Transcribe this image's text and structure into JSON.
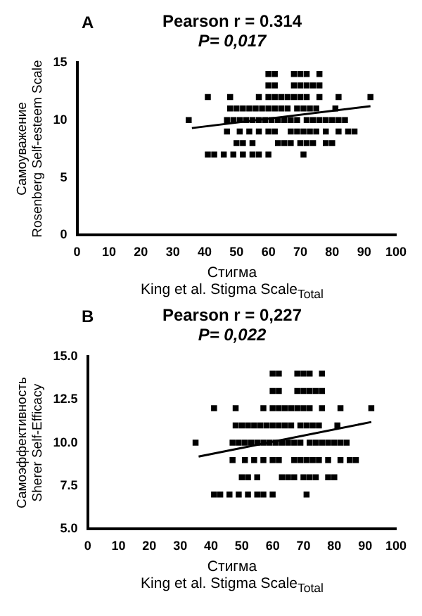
{
  "chart_data": [
    {
      "type": "scatter",
      "title": "Pearson r = 0.314",
      "subtitle": "P= 0,017",
      "annotations": [
        "A"
      ],
      "xlabel": "Стигма\nKing et al. Stigma Scale$_{Total}$",
      "ylabel": "Самоуважение\nRosenberg Self-esteem Scale",
      "xlim": [
        0,
        100
      ],
      "xticks": [
        0,
        10,
        20,
        30,
        40,
        50,
        60,
        70,
        80,
        90,
        100
      ],
      "ylim": [
        0,
        15
      ],
      "yticks": [
        0,
        5,
        10,
        15
      ],
      "grid": false,
      "legend": false,
      "series": [
        {
          "marker": "square",
          "color": "#000000",
          "x": [
            60,
            62,
            68,
            70,
            72,
            76,
            60,
            62,
            68,
            70,
            72,
            74,
            76,
            41,
            48,
            57,
            60,
            62,
            64,
            66,
            68,
            70,
            72,
            76,
            82,
            92,
            48,
            50,
            52,
            54,
            56,
            58,
            60,
            62,
            64,
            66,
            69,
            71,
            73,
            75,
            81,
            35,
            47,
            49,
            51,
            53,
            55,
            57,
            59,
            61,
            63,
            65,
            67,
            69,
            72,
            74,
            76,
            78,
            80,
            82,
            84,
            47,
            51,
            54,
            57,
            60,
            62,
            67,
            69,
            71,
            73,
            75,
            78,
            82,
            85,
            87,
            50,
            52,
            55,
            63,
            65,
            67,
            70,
            72,
            74,
            78,
            80,
            41,
            43,
            46,
            49,
            52,
            55,
            57,
            60,
            71
          ],
          "values": [
            14,
            14,
            14,
            14,
            14,
            14,
            13,
            13,
            13,
            13,
            13,
            13,
            13,
            12,
            12,
            12,
            12,
            12,
            12,
            12,
            12,
            12,
            12,
            12,
            12,
            12,
            11,
            11,
            11,
            11,
            11,
            11,
            11,
            11,
            11,
            11,
            11,
            11,
            11,
            11,
            11,
            10,
            10,
            10,
            10,
            10,
            10,
            10,
            10,
            10,
            10,
            10,
            10,
            10,
            10,
            10,
            10,
            10,
            10,
            10,
            10,
            9,
            9,
            9,
            9,
            9,
            9,
            9,
            9,
            9,
            9,
            9,
            9,
            9,
            9,
            9,
            8,
            8,
            8,
            8,
            8,
            8,
            8,
            8,
            8,
            8,
            8,
            7,
            7,
            7,
            7,
            7,
            7,
            7,
            7,
            7
          ]
        },
        {
          "type": "line",
          "marker": "none",
          "color": "#000000",
          "x": [
            36,
            92
          ],
          "values": [
            9.3,
            11.2
          ]
        }
      ]
    },
    {
      "type": "scatter",
      "title": "Pearson r = 0,227",
      "subtitle": "P= 0,022",
      "annotations": [
        "B"
      ],
      "xlabel": "Стигма\nKing et al. Stigma Scale$_{Total}$",
      "ylabel": "Самоэффективность\nSherer Self-Efficacy",
      "xlim": [
        0,
        100
      ],
      "xticks": [
        0,
        10,
        20,
        30,
        40,
        50,
        60,
        70,
        80,
        90,
        100
      ],
      "ylim": [
        5,
        15
      ],
      "yticks": [
        {
          "value": 5,
          "label": "5.0"
        },
        {
          "value": 7.5,
          "label": "7.5"
        },
        {
          "value": 10,
          "label": "10.0"
        },
        {
          "value": 12.5,
          "label": "12.5"
        },
        {
          "value": 15,
          "label": "15.0"
        }
      ],
      "grid": false,
      "legend": false,
      "series": [
        {
          "marker": "square",
          "color": "#000000",
          "x": [
            60,
            62,
            68,
            70,
            72,
            76,
            60,
            62,
            68,
            70,
            72,
            74,
            76,
            41,
            48,
            57,
            60,
            62,
            64,
            66,
            68,
            70,
            72,
            76,
            82,
            92,
            48,
            50,
            52,
            54,
            56,
            58,
            60,
            62,
            64,
            66,
            69,
            71,
            73,
            75,
            81,
            35,
            47,
            49,
            51,
            53,
            55,
            57,
            59,
            61,
            63,
            65,
            67,
            69,
            72,
            74,
            76,
            78,
            80,
            82,
            84,
            47,
            51,
            54,
            57,
            60,
            62,
            67,
            69,
            71,
            73,
            75,
            78,
            82,
            85,
            87,
            50,
            52,
            55,
            63,
            65,
            67,
            70,
            72,
            74,
            78,
            80,
            41,
            43,
            46,
            49,
            52,
            55,
            57,
            60,
            71
          ],
          "values": [
            14,
            14,
            14,
            14,
            14,
            14,
            13,
            13,
            13,
            13,
            13,
            13,
            13,
            12,
            12,
            12,
            12,
            12,
            12,
            12,
            12,
            12,
            12,
            12,
            12,
            12,
            11,
            11,
            11,
            11,
            11,
            11,
            11,
            11,
            11,
            11,
            11,
            11,
            11,
            11,
            11,
            10,
            10,
            10,
            10,
            10,
            10,
            10,
            10,
            10,
            10,
            10,
            10,
            10,
            10,
            10,
            10,
            10,
            10,
            10,
            10,
            9,
            9,
            9,
            9,
            9,
            9,
            9,
            9,
            9,
            9,
            9,
            9,
            9,
            9,
            9,
            8,
            8,
            8,
            8,
            8,
            8,
            8,
            8,
            8,
            8,
            8,
            7,
            7,
            7,
            7,
            7,
            7,
            7,
            7,
            7
          ]
        },
        {
          "type": "line",
          "marker": "none",
          "color": "#000000",
          "x": [
            36,
            92
          ],
          "values": [
            9.2,
            11.2
          ]
        }
      ]
    }
  ]
}
